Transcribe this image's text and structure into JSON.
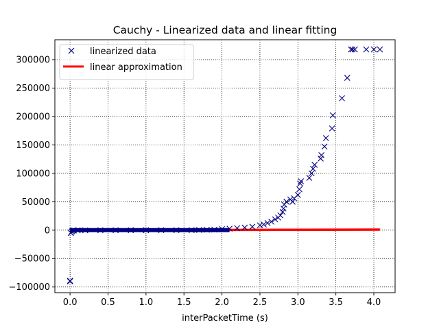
{
  "chart_data": {
    "type": "scatter",
    "title": "Cauchy - Linearized data and linear fitting",
    "xlabel": "interPacketTime (s)",
    "ylabel": "",
    "xlim": [
      -0.2,
      4.28
    ],
    "ylim": [
      -110000,
      335000
    ],
    "xticks": [
      0.0,
      0.5,
      1.0,
      1.5,
      2.0,
      2.5,
      3.0,
      3.5,
      4.0
    ],
    "xtick_labels": [
      "0.0",
      "0.5",
      "1.0",
      "1.5",
      "2.0",
      "2.5",
      "3.0",
      "3.5",
      "4.0"
    ],
    "yticks": [
      -100000,
      -50000,
      0,
      50000,
      100000,
      150000,
      200000,
      250000,
      300000
    ],
    "ytick_labels": [
      "−100000",
      "−50000",
      "0",
      "50000",
      "100000",
      "150000",
      "200000",
      "250000",
      "300000"
    ],
    "grid": true,
    "legend_position": "upper-left",
    "legend": [
      "linearized data",
      "linear approximation"
    ],
    "colors": {
      "data": "#000080",
      "line": "#ff0000"
    },
    "series": [
      {
        "name": "linearized data",
        "marker": "x",
        "points": [
          [
            0.0,
            -90000
          ],
          [
            0.0,
            -89000
          ],
          [
            0.01,
            -5000
          ],
          [
            0.02,
            -3000
          ],
          [
            0.03,
            -1500
          ],
          [
            0.05,
            -600
          ],
          [
            0.1,
            -300
          ],
          [
            0.2,
            -200
          ],
          [
            0.4,
            -100
          ],
          [
            0.6,
            -60
          ],
          [
            0.8,
            -40
          ],
          [
            1.0,
            -20
          ],
          [
            1.2,
            -10
          ],
          [
            1.4,
            0
          ],
          [
            1.6,
            100
          ],
          [
            1.7,
            300
          ],
          [
            1.8,
            600
          ],
          [
            1.9,
            1000
          ],
          [
            2.0,
            1800
          ],
          [
            2.1,
            2600
          ],
          [
            2.2,
            3500
          ],
          [
            2.3,
            4500
          ],
          [
            2.4,
            6000
          ],
          [
            2.5,
            8500
          ],
          [
            2.55,
            10000
          ],
          [
            2.6,
            12500
          ],
          [
            2.65,
            15000
          ],
          [
            2.7,
            19000
          ],
          [
            2.74,
            22000
          ],
          [
            2.77,
            26000
          ],
          [
            2.8,
            32000
          ],
          [
            2.81,
            38000
          ],
          [
            2.82,
            45000
          ],
          [
            2.85,
            50000
          ],
          [
            2.9,
            54000
          ],
          [
            2.93,
            50000
          ],
          [
            2.95,
            56000
          ],
          [
            3.0,
            62000
          ],
          [
            3.02,
            72000
          ],
          [
            3.03,
            82000
          ],
          [
            3.04,
            86000
          ],
          [
            3.15,
            92000
          ],
          [
            3.18,
            100000
          ],
          [
            3.2,
            108000
          ],
          [
            3.22,
            115000
          ],
          [
            3.3,
            126000
          ],
          [
            3.31,
            132000
          ],
          [
            3.35,
            147000
          ],
          [
            3.37,
            162000
          ],
          [
            3.45,
            179000
          ],
          [
            3.46,
            202000
          ],
          [
            3.58,
            232000
          ],
          [
            3.65,
            268000
          ],
          [
            3.7,
            318000
          ],
          [
            3.72,
            318000
          ],
          [
            3.75,
            318000
          ],
          [
            3.9,
            318000
          ],
          [
            4.0,
            318000
          ],
          [
            4.08,
            318000
          ]
        ]
      },
      {
        "name": "linear approximation",
        "line": [
          [
            0.0,
            0
          ],
          [
            4.08,
            900
          ]
        ]
      }
    ]
  }
}
